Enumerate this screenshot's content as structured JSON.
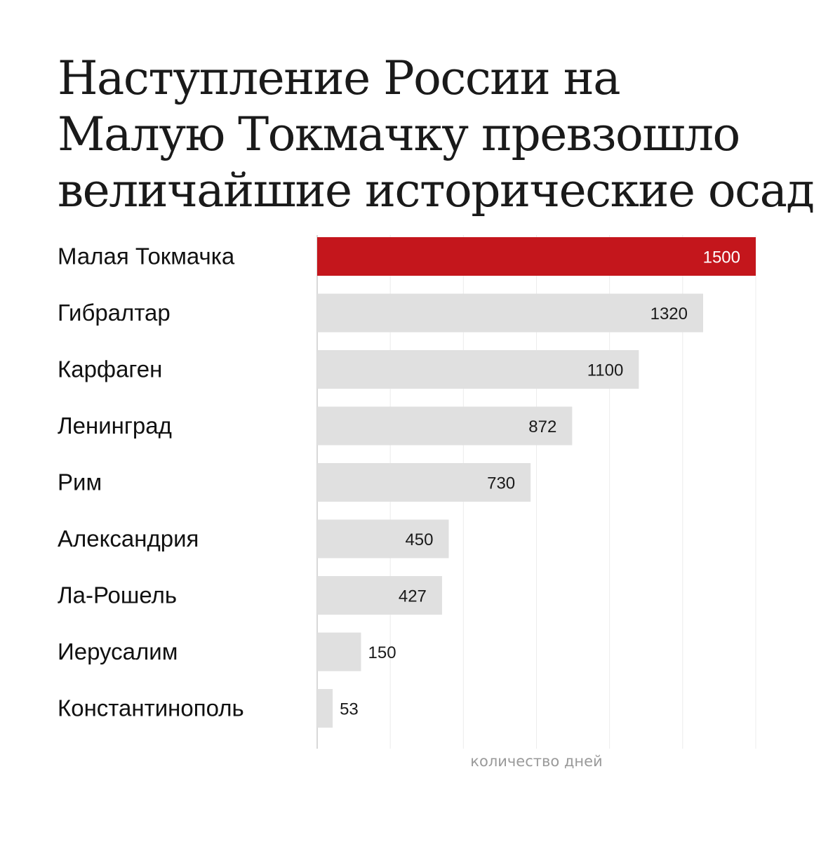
{
  "title_lines": [
    "Наступление России на",
    "Малую Токмачку превзошло",
    "величайшие исторические осады"
  ],
  "colors": {
    "highlight": "#c4161c",
    "bar": "#e0e0e0",
    "grid": "#ececec",
    "axis": "#cccccc"
  },
  "chart_data": {
    "type": "bar",
    "orientation": "horizontal",
    "categories": [
      "Малая Токмачка",
      "Гибралтар",
      "Карфаген",
      "Ленинград",
      "Рим",
      "Александрия",
      "Ла-Рошель",
      "Иерусалим",
      "Константинополь"
    ],
    "values": [
      1500,
      1320,
      1100,
      872,
      730,
      450,
      427,
      150,
      53
    ],
    "value_labels": [
      "1500",
      "1320",
      "1100",
      "872",
      "730",
      "450",
      "427",
      "150",
      "53"
    ],
    "highlight_index": 0,
    "xlabel": "количество дней",
    "ylabel": "",
    "xlim": [
      0,
      1500
    ],
    "grid": true
  }
}
